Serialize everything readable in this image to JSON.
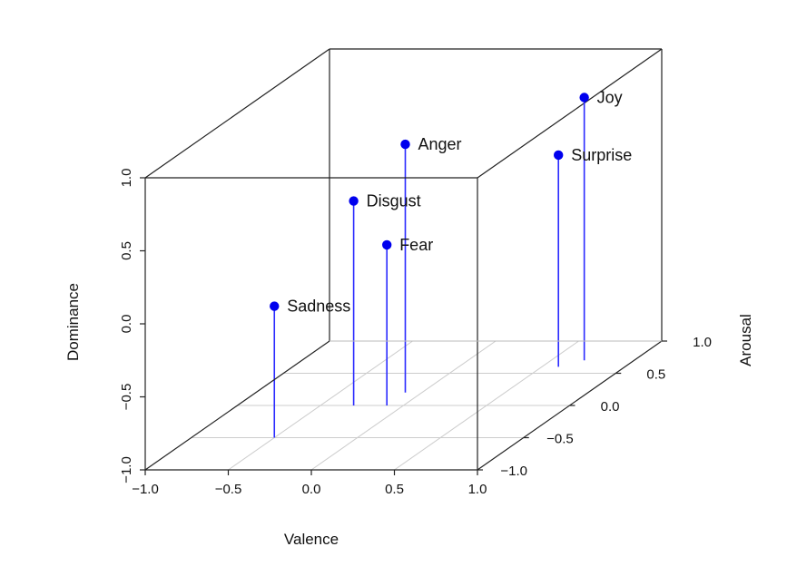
{
  "chart_data": {
    "type": "scatter",
    "projection": "3d",
    "xlabel": "Valence",
    "ylabel": "Arousal",
    "zlabel": "Dominance",
    "xlim": [
      -1.0,
      1.0
    ],
    "ylim": [
      -1.0,
      1.0
    ],
    "zlim": [
      -1.0,
      1.0
    ],
    "x_ticks": [
      "−1.0",
      "−0.5",
      "0.0",
      "0.5",
      "1.0"
    ],
    "y_ticks": [
      "−1.0",
      "−0.5",
      "0.0",
      "0.5",
      "1.0"
    ],
    "z_ticks": [
      "−1.0",
      "−0.5",
      "0.0",
      "0.5",
      "1.0"
    ],
    "grid": "floor",
    "marker_color": "#0000ee",
    "stem_color": "#2a2aff",
    "points": [
      {
        "label": "Sadness",
        "x": -0.5,
        "y": -0.5,
        "z": -0.1
      },
      {
        "label": "Fear",
        "x": -0.1,
        "y": 0.0,
        "z": 0.1
      },
      {
        "label": "Disgust",
        "x": -0.3,
        "y": 0.0,
        "z": 0.4
      },
      {
        "label": "Anger",
        "x": -0.1,
        "y": 0.2,
        "z": 0.7
      },
      {
        "label": "Surprise",
        "x": 0.6,
        "y": 0.6,
        "z": 0.45
      },
      {
        "label": "Joy",
        "x": 0.7,
        "y": 0.7,
        "z": 0.8
      }
    ]
  }
}
